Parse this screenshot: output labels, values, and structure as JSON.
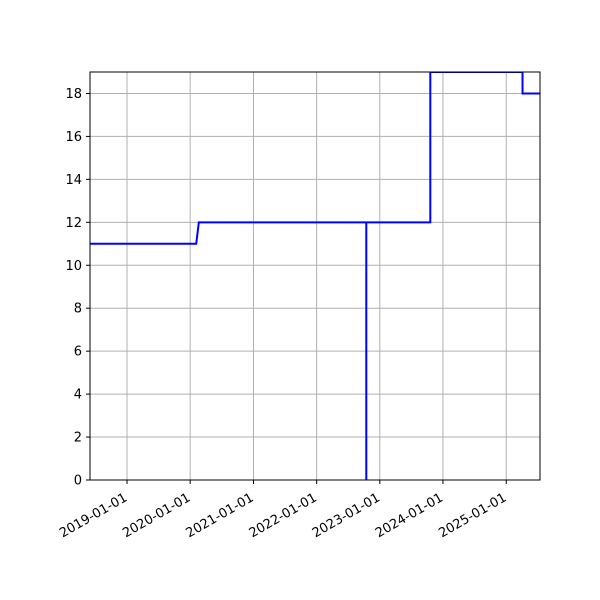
{
  "chart_data": {
    "type": "line",
    "title": "",
    "xlabel": "",
    "ylabel": "",
    "x_axis": {
      "kind": "date",
      "range": [
        "2018-06-01",
        "2025-07-15"
      ],
      "ticks": [
        "2019-01-01",
        "2020-01-01",
        "2021-01-01",
        "2022-01-01",
        "2023-01-01",
        "2024-01-01",
        "2025-01-01"
      ]
    },
    "y_axis": {
      "range": [
        0,
        19
      ],
      "ticks": [
        0,
        2,
        4,
        6,
        8,
        10,
        12,
        14,
        16,
        18
      ]
    },
    "grid": true,
    "legend": "none",
    "series": [
      {
        "color": "#0000ff",
        "step": true,
        "points": [
          {
            "x": "2018-06-01",
            "y": 11
          },
          {
            "x": "2020-02-05",
            "y": 11
          },
          {
            "x": "2020-02-20",
            "y": 12
          },
          {
            "x": "2022-10-15",
            "y": 12
          },
          {
            "x": "2022-10-15",
            "y": 0
          },
          {
            "x": "2022-10-15",
            "y": 12
          },
          {
            "x": "2023-10-20",
            "y": 12
          },
          {
            "x": "2023-10-20",
            "y": 19
          },
          {
            "x": "2025-04-05",
            "y": 19
          },
          {
            "x": "2025-04-05",
            "y": 18
          },
          {
            "x": "2025-07-15",
            "y": 18
          }
        ]
      }
    ]
  }
}
